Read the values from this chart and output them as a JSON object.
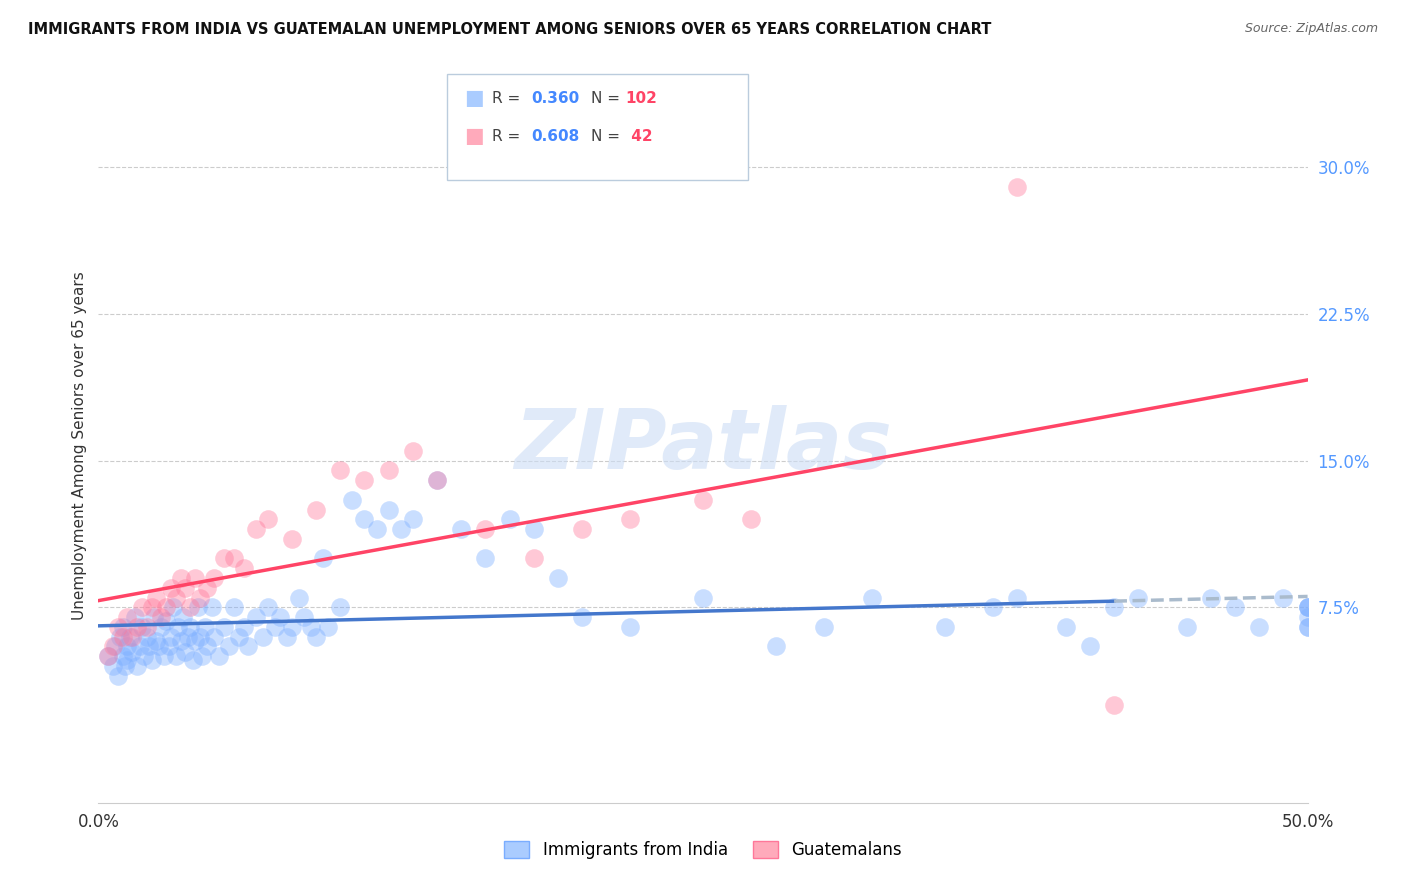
{
  "title": "IMMIGRANTS FROM INDIA VS GUATEMALAN UNEMPLOYMENT AMONG SENIORS OVER 65 YEARS CORRELATION CHART",
  "source": "Source: ZipAtlas.com",
  "ylabel": "Unemployment Among Seniors over 65 years",
  "xlim": [
    0.0,
    0.5
  ],
  "ylim": [
    -0.025,
    0.34
  ],
  "yticks_right": [
    0.075,
    0.15,
    0.225,
    0.3
  ],
  "yticklabels_right": [
    "7.5%",
    "15.0%",
    "22.5%",
    "30.0%"
  ],
  "grid_color": "#cccccc",
  "background_color": "#ffffff",
  "watermark": "ZIPatlas",
  "series1_label": "Immigrants from India",
  "series1_color": "#7aadff",
  "series1_R": "0.360",
  "series1_N": "102",
  "series2_label": "Guatemalans",
  "series2_color": "#ff7799",
  "series2_R": "0.608",
  "series2_N": "42",
  "india_trend_solid_end": 0.42,
  "india_trend_color": "#4477cc",
  "india_trend_dashed_color": "#aabbcc",
  "guat_trend_color": "#ff4466",
  "india_x": [
    0.004,
    0.006,
    0.007,
    0.008,
    0.009,
    0.01,
    0.01,
    0.011,
    0.012,
    0.012,
    0.013,
    0.014,
    0.015,
    0.016,
    0.017,
    0.018,
    0.019,
    0.02,
    0.021,
    0.022,
    0.023,
    0.024,
    0.025,
    0.026,
    0.027,
    0.028,
    0.029,
    0.03,
    0.031,
    0.032,
    0.033,
    0.034,
    0.035,
    0.036,
    0.037,
    0.038,
    0.039,
    0.04,
    0.041,
    0.042,
    0.043,
    0.044,
    0.045,
    0.047,
    0.048,
    0.05,
    0.052,
    0.054,
    0.056,
    0.058,
    0.06,
    0.062,
    0.065,
    0.068,
    0.07,
    0.073,
    0.075,
    0.078,
    0.08,
    0.083,
    0.085,
    0.088,
    0.09,
    0.093,
    0.095,
    0.1,
    0.105,
    0.11,
    0.115,
    0.12,
    0.125,
    0.13,
    0.14,
    0.15,
    0.16,
    0.17,
    0.18,
    0.19,
    0.2,
    0.22,
    0.25,
    0.28,
    0.3,
    0.32,
    0.35,
    0.37,
    0.38,
    0.4,
    0.41,
    0.42,
    0.43,
    0.45,
    0.46,
    0.47,
    0.48,
    0.49,
    0.5,
    0.5,
    0.5,
    0.5,
    0.5,
    0.5
  ],
  "india_y": [
    0.05,
    0.045,
    0.055,
    0.04,
    0.06,
    0.05,
    0.065,
    0.045,
    0.055,
    0.048,
    0.06,
    0.052,
    0.07,
    0.045,
    0.055,
    0.065,
    0.05,
    0.06,
    0.055,
    0.048,
    0.07,
    0.058,
    0.055,
    0.065,
    0.05,
    0.068,
    0.055,
    0.06,
    0.075,
    0.05,
    0.065,
    0.058,
    0.07,
    0.052,
    0.06,
    0.065,
    0.048,
    0.058,
    0.075,
    0.06,
    0.05,
    0.065,
    0.055,
    0.075,
    0.06,
    0.05,
    0.065,
    0.055,
    0.075,
    0.06,
    0.065,
    0.055,
    0.07,
    0.06,
    0.075,
    0.065,
    0.07,
    0.06,
    0.065,
    0.08,
    0.07,
    0.065,
    0.06,
    0.1,
    0.065,
    0.075,
    0.13,
    0.12,
    0.115,
    0.125,
    0.115,
    0.12,
    0.14,
    0.115,
    0.1,
    0.12,
    0.115,
    0.09,
    0.07,
    0.065,
    0.08,
    0.055,
    0.065,
    0.08,
    0.065,
    0.075,
    0.08,
    0.065,
    0.055,
    0.075,
    0.08,
    0.065,
    0.08,
    0.075,
    0.065,
    0.08,
    0.075,
    0.065,
    0.075,
    0.07,
    0.075,
    0.065
  ],
  "guat_x": [
    0.004,
    0.006,
    0.008,
    0.01,
    0.012,
    0.014,
    0.016,
    0.018,
    0.02,
    0.022,
    0.024,
    0.026,
    0.028,
    0.03,
    0.032,
    0.034,
    0.036,
    0.038,
    0.04,
    0.042,
    0.045,
    0.048,
    0.052,
    0.056,
    0.06,
    0.065,
    0.07,
    0.08,
    0.09,
    0.1,
    0.11,
    0.12,
    0.13,
    0.14,
    0.16,
    0.18,
    0.2,
    0.22,
    0.25,
    0.27,
    0.38,
    0.42
  ],
  "guat_y": [
    0.05,
    0.055,
    0.065,
    0.06,
    0.07,
    0.06,
    0.065,
    0.075,
    0.065,
    0.075,
    0.08,
    0.07,
    0.075,
    0.085,
    0.08,
    0.09,
    0.085,
    0.075,
    0.09,
    0.08,
    0.085,
    0.09,
    0.1,
    0.1,
    0.095,
    0.115,
    0.12,
    0.11,
    0.125,
    0.145,
    0.14,
    0.145,
    0.155,
    0.14,
    0.115,
    0.1,
    0.115,
    0.12,
    0.13,
    0.12,
    0.29,
    0.025
  ]
}
